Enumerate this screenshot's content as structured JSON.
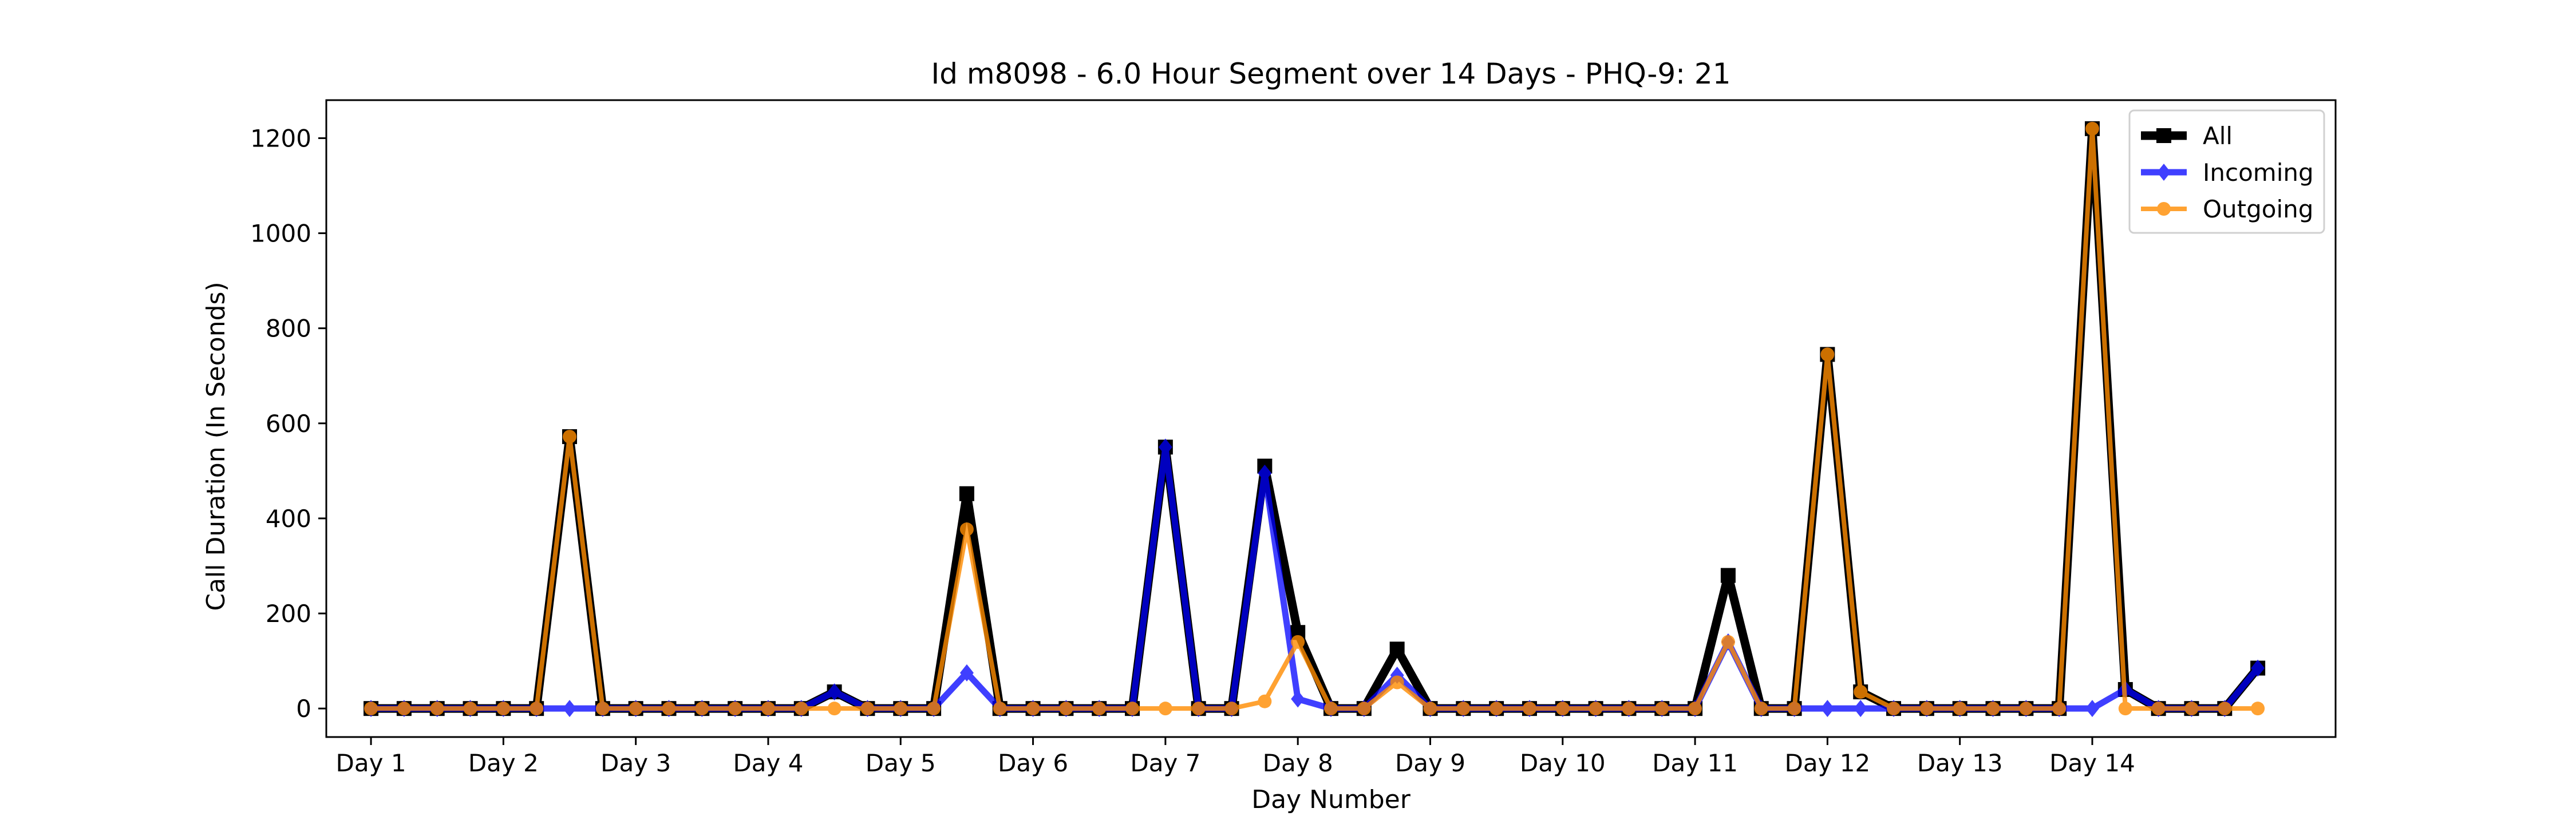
{
  "chart_data": {
    "type": "line",
    "title": "Id m8098 - 6.0 Hour Segment over 14 Days - PHQ-9: 21",
    "xlabel": "Day Number",
    "ylabel": "Call Duration (In Seconds)",
    "xlim": [
      -1.35,
      59.35
    ],
    "ylim": [
      -60,
      1280
    ],
    "xticks": [
      {
        "x": 0,
        "label": "Day 1"
      },
      {
        "x": 4,
        "label": "Day 2"
      },
      {
        "x": 8,
        "label": "Day 3"
      },
      {
        "x": 12,
        "label": "Day 4"
      },
      {
        "x": 16,
        "label": "Day 5"
      },
      {
        "x": 20,
        "label": "Day 6"
      },
      {
        "x": 24,
        "label": "Day 7"
      },
      {
        "x": 28,
        "label": "Day 8"
      },
      {
        "x": 32,
        "label": "Day 9"
      },
      {
        "x": 36,
        "label": "Day 10"
      },
      {
        "x": 40,
        "label": "Day 11"
      },
      {
        "x": 44,
        "label": "Day 12"
      },
      {
        "x": 48,
        "label": "Day 13"
      },
      {
        "x": 52,
        "label": "Day 14"
      }
    ],
    "yticks": [
      0,
      200,
      400,
      600,
      800,
      1000,
      1200
    ],
    "grid": false,
    "legend_position": "top-right",
    "series": [
      {
        "name": "All",
        "color": "#000000",
        "marker": "square",
        "values": [
          0,
          0,
          0,
          0,
          0,
          0,
          572,
          0,
          0,
          0,
          0,
          0,
          0,
          0,
          35,
          0,
          0,
          0,
          452,
          0,
          0,
          0,
          0,
          0,
          550,
          0,
          0,
          510,
          160,
          0,
          0,
          125,
          0,
          0,
          0,
          0,
          0,
          0,
          0,
          0,
          0,
          280,
          0,
          0,
          745,
          35,
          0,
          0,
          0,
          0,
          0,
          0,
          1220,
          40,
          0,
          0,
          0,
          85
        ]
      },
      {
        "name": "Incoming",
        "color": "#0000ff",
        "marker": "diamond",
        "values": [
          0,
          0,
          0,
          0,
          0,
          0,
          0,
          0,
          0,
          0,
          0,
          0,
          0,
          0,
          35,
          0,
          0,
          0,
          75,
          0,
          0,
          0,
          0,
          0,
          550,
          0,
          0,
          495,
          20,
          0,
          0,
          70,
          0,
          0,
          0,
          0,
          0,
          0,
          0,
          0,
          0,
          140,
          0,
          0,
          0,
          0,
          0,
          0,
          0,
          0,
          0,
          0,
          0,
          40,
          0,
          0,
          0,
          85
        ]
      },
      {
        "name": "Outgoing",
        "color": "#ff8c00",
        "marker": "circle",
        "values": [
          0,
          0,
          0,
          0,
          0,
          0,
          572,
          0,
          0,
          0,
          0,
          0,
          0,
          0,
          0,
          0,
          0,
          0,
          377,
          0,
          0,
          0,
          0,
          0,
          0,
          0,
          0,
          15,
          140,
          0,
          0,
          55,
          0,
          0,
          0,
          0,
          0,
          0,
          0,
          0,
          0,
          140,
          0,
          0,
          745,
          35,
          0,
          0,
          0,
          0,
          0,
          0,
          1220,
          0,
          0,
          0,
          0,
          0
        ]
      }
    ]
  }
}
